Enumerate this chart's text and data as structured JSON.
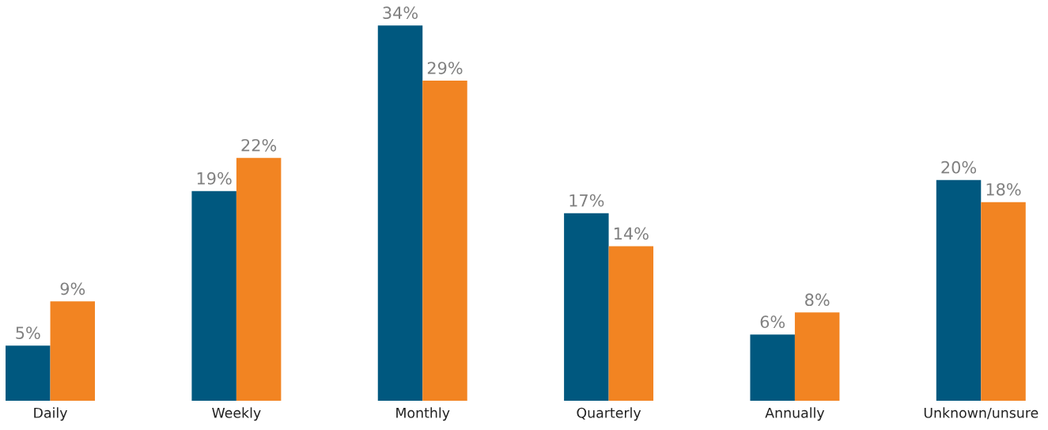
{
  "chart_data": {
    "type": "bar",
    "categories": [
      "Daily",
      "Weekly",
      "Monthly",
      "Quarterly",
      "Annually",
      "Unknown/unsure"
    ],
    "series": [
      {
        "color": "#00587f",
        "values": [
          5,
          19,
          34,
          17,
          6,
          20
        ],
        "value_labels": [
          "5%",
          "19%",
          "34%",
          "17%",
          "6%",
          "20%"
        ]
      },
      {
        "color": "#f28422",
        "values": [
          9,
          22,
          29,
          14,
          8,
          18
        ],
        "value_labels": [
          "9%",
          "22%",
          "29%",
          "14%",
          "8%",
          "18%"
        ]
      }
    ],
    "grid": false,
    "legend": false
  }
}
